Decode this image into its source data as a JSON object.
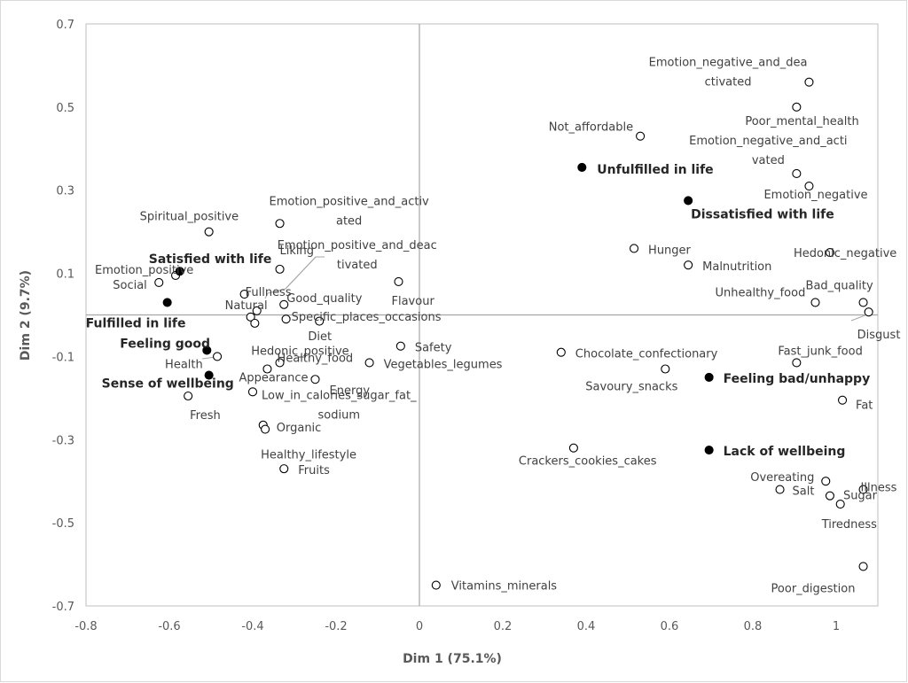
{
  "chart_data": {
    "type": "scatter",
    "title": "",
    "xlabel": "Dim 1 (75.1%)",
    "ylabel": "Dim 2 (9.7%)",
    "xlim": [
      -0.8,
      1.1
    ],
    "ylim": [
      -0.7,
      0.7
    ],
    "xticks": [
      "-0.8",
      "-0.6",
      "-0.4",
      "-0.2",
      "0",
      "0.2",
      "0.4",
      "0.6",
      "0.8",
      "1"
    ],
    "yticks": [
      "0.7",
      "0.5",
      "0.3",
      "0.1",
      "-0.1",
      "-0.3",
      "-0.5",
      "-0.7"
    ],
    "grid": false,
    "legend": "none",
    "series": [
      {
        "marker": "open-circle",
        "points": [
          {
            "label": "Emotion_negative_and_dea ctivated",
            "lines": [
              "Emotion_negative_and_dea",
              "ctivated"
            ],
            "x": 0.935,
            "y": 0.56
          },
          {
            "label": "Poor_mental_health",
            "x": 0.905,
            "y": 0.5
          },
          {
            "label": "Not_affordable",
            "x": 0.53,
            "y": 0.43
          },
          {
            "label": "Emotion_negative_and_acti vated",
            "lines": [
              "Emotion_negative_and_acti",
              "vated"
            ],
            "x": 0.905,
            "y": 0.34
          },
          {
            "label": "Emotion_negative",
            "x": 0.935,
            "y": 0.31
          },
          {
            "label": "Emotion_positive_and_activ ated",
            "lines": [
              "Emotion_positive_and_activ",
              "ated"
            ],
            "x": -0.335,
            "y": 0.22
          },
          {
            "label": "Spiritual_positive",
            "x": -0.505,
            "y": 0.2
          },
          {
            "label": "Hunger",
            "x": 0.515,
            "y": 0.16
          },
          {
            "label": "Hedonic_negative",
            "x": 0.985,
            "y": 0.15
          },
          {
            "label": "Malnutrition",
            "x": 0.645,
            "y": 0.12
          },
          {
            "label": "Liking",
            "x": -0.335,
            "y": 0.11
          },
          {
            "label": "Emotion_positive_and_deac tivated",
            "lines": [
              "Emotion_positive_and_deac",
              "tivated"
            ],
            "x": -0.39,
            "y": 0.01
          },
          {
            "label": "Emotion_positive",
            "x": -0.585,
            "y": 0.095
          },
          {
            "label": "Social",
            "x": -0.625,
            "y": 0.078
          },
          {
            "label": "Flavour",
            "x": -0.05,
            "y": 0.08
          },
          {
            "label": "Fullness",
            "x": -0.42,
            "y": 0.05
          },
          {
            "label": "Good_quality",
            "x": -0.325,
            "y": 0.025
          },
          {
            "label": "Natural",
            "x": -0.405,
            "y": -0.005
          },
          {
            "label": "Specific_places_occasions",
            "x": -0.32,
            "y": -0.01
          },
          {
            "label": "Diet",
            "x": -0.395,
            "y": -0.02
          },
          {
            "label": "Unhealthy_food",
            "x": 0.95,
            "y": 0.03
          },
          {
            "label": "Bad_quality",
            "x": 1.065,
            "y": 0.03
          },
          {
            "label": "Disgust",
            "x": 1.078,
            "y": 0.007
          },
          {
            "label": "Hedonic_positive",
            "x": -0.24,
            "y": -0.015
          },
          {
            "label": "Safety",
            "x": -0.045,
            "y": -0.075
          },
          {
            "label": "Health",
            "x": -0.485,
            "y": -0.1
          },
          {
            "label": "Healthy_food",
            "x": -0.335,
            "y": -0.115
          },
          {
            "label": "Vegetables_legumes",
            "x": -0.12,
            "y": -0.115
          },
          {
            "label": "Chocolate_confectionary",
            "x": 0.34,
            "y": -0.09
          },
          {
            "label": "Fast_junk_food",
            "x": 0.905,
            "y": -0.115
          },
          {
            "label": "Savoury_snacks",
            "x": 0.59,
            "y": -0.13
          },
          {
            "label": "Appearance",
            "x": -0.365,
            "y": -0.13
          },
          {
            "label": "Energy",
            "x": -0.25,
            "y": -0.155
          },
          {
            "label": "Low_in_calories_sugar_fat_ sodium",
            "lines": [
              "Low_in_calories_sugar_fat_",
              "sodium"
            ],
            "x": -0.4,
            "y": -0.185
          },
          {
            "label": "Fresh",
            "x": -0.555,
            "y": -0.195
          },
          {
            "label": "Fat",
            "x": 1.015,
            "y": -0.205
          },
          {
            "label": "Organic",
            "x": -0.375,
            "y": -0.265
          },
          {
            "label": "Healthy_lifestyle",
            "x": -0.37,
            "y": -0.275
          },
          {
            "label": "Crackers_cookies_cakes",
            "x": 0.37,
            "y": -0.32
          },
          {
            "label": "Fruits",
            "x": -0.325,
            "y": -0.37
          },
          {
            "label": "Overeating",
            "x": 0.975,
            "y": -0.4
          },
          {
            "label": "Illness",
            "x": 1.065,
            "y": -0.42
          },
          {
            "label": "Salt",
            "x": 0.865,
            "y": -0.42
          },
          {
            "label": "Sugar",
            "x": 0.985,
            "y": -0.435
          },
          {
            "label": "Tiredness",
            "x": 1.01,
            "y": -0.455
          },
          {
            "label": "Poor_digestion",
            "x": 1.065,
            "y": -0.605
          },
          {
            "label": "Vitamins_minerals",
            "x": 0.04,
            "y": -0.65
          }
        ]
      },
      {
        "marker": "filled-circle",
        "points": [
          {
            "label": "Unfulfilled in life",
            "x": 0.39,
            "y": 0.355
          },
          {
            "label": "Dissatisfied with life",
            "x": 0.645,
            "y": 0.275
          },
          {
            "label": "Satisfied with life",
            "x": -0.575,
            "y": 0.105
          },
          {
            "label": "Fulfilled in life",
            "x": -0.605,
            "y": 0.03
          },
          {
            "label": "Feeling good",
            "x": -0.51,
            "y": -0.085
          },
          {
            "label": "Sense of wellbeing",
            "x": -0.505,
            "y": -0.145
          },
          {
            "label": "Feeling bad/unhappy",
            "x": 0.695,
            "y": -0.15
          },
          {
            "label": "Lack of wellbeing",
            "x": 0.695,
            "y": -0.325
          }
        ]
      }
    ]
  }
}
